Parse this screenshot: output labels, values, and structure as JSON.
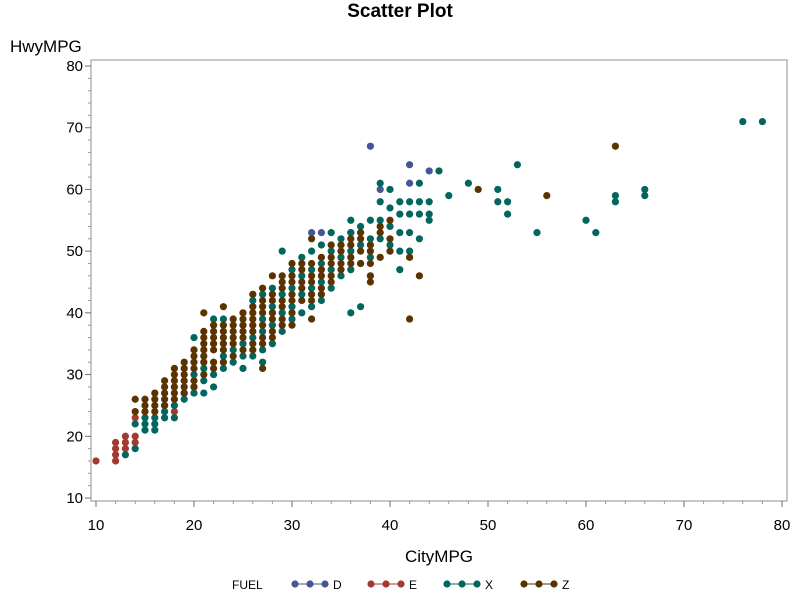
{
  "chart_data": {
    "type": "scatter",
    "title": "Scatter Plot",
    "xlabel": "CityMPG",
    "ylabel": "HwyMPG",
    "xlim": [
      10,
      80
    ],
    "ylim": [
      10,
      80
    ],
    "xticks": [
      10,
      20,
      30,
      40,
      50,
      60,
      70,
      80
    ],
    "yticks": [
      10,
      20,
      30,
      40,
      50,
      60,
      70,
      80
    ],
    "grid": false,
    "legend": {
      "title": "FUEL",
      "placement": "bottom"
    },
    "series": [
      {
        "name": "D",
        "color": "#445694",
        "points": [
          [
            38,
            67
          ],
          [
            42,
            64
          ],
          [
            44,
            63
          ],
          [
            42,
            61
          ],
          [
            39,
            60
          ],
          [
            32,
            53
          ],
          [
            33,
            53
          ],
          [
            36,
            53
          ]
        ]
      },
      {
        "name": "E",
        "color": "#A23A2E",
        "points": [
          [
            10,
            16
          ],
          [
            12,
            16
          ],
          [
            12,
            17
          ],
          [
            12,
            18
          ],
          [
            12,
            19
          ],
          [
            13,
            18
          ],
          [
            13,
            19
          ],
          [
            13,
            20
          ],
          [
            14,
            19
          ],
          [
            14,
            20
          ],
          [
            14,
            23
          ],
          [
            18,
            24
          ]
        ]
      },
      {
        "name": "X",
        "color": "#01665E",
        "points": [
          [
            13,
            17
          ],
          [
            14,
            18
          ],
          [
            14,
            22
          ],
          [
            15,
            21
          ],
          [
            15,
            22
          ],
          [
            15,
            23
          ],
          [
            16,
            21
          ],
          [
            16,
            22
          ],
          [
            16,
            23
          ],
          [
            17,
            23
          ],
          [
            17,
            24
          ],
          [
            17,
            25
          ],
          [
            18,
            23
          ],
          [
            18,
            25
          ],
          [
            19,
            26
          ],
          [
            19,
            27
          ],
          [
            20,
            27
          ],
          [
            20,
            28
          ],
          [
            20,
            30
          ],
          [
            20,
            36
          ],
          [
            21,
            27
          ],
          [
            21,
            29
          ],
          [
            21,
            31
          ],
          [
            22,
            28
          ],
          [
            22,
            30
          ],
          [
            22,
            39
          ],
          [
            23,
            31
          ],
          [
            23,
            33
          ],
          [
            23,
            39
          ],
          [
            24,
            32
          ],
          [
            24,
            34
          ],
          [
            25,
            31
          ],
          [
            25,
            33
          ],
          [
            25,
            35
          ],
          [
            26,
            33
          ],
          [
            26,
            36
          ],
          [
            26,
            42
          ],
          [
            27,
            32
          ],
          [
            27,
            34
          ],
          [
            27,
            37
          ],
          [
            27,
            39
          ],
          [
            27,
            43
          ],
          [
            28,
            35
          ],
          [
            28,
            38
          ],
          [
            28,
            41
          ],
          [
            28,
            44
          ],
          [
            29,
            37
          ],
          [
            29,
            40
          ],
          [
            29,
            43
          ],
          [
            29,
            50
          ],
          [
            30,
            39
          ],
          [
            30,
            41
          ],
          [
            30,
            44
          ],
          [
            30,
            47
          ],
          [
            31,
            40
          ],
          [
            31,
            43
          ],
          [
            31,
            46
          ],
          [
            31,
            49
          ],
          [
            32,
            41
          ],
          [
            32,
            44
          ],
          [
            32,
            47
          ],
          [
            32,
            50
          ],
          [
            33,
            42
          ],
          [
            33,
            45
          ],
          [
            33,
            48
          ],
          [
            33,
            51
          ],
          [
            34,
            44
          ],
          [
            34,
            47
          ],
          [
            34,
            50
          ],
          [
            34,
            53
          ],
          [
            35,
            46
          ],
          [
            35,
            49
          ],
          [
            35,
            52
          ],
          [
            36,
            40
          ],
          [
            36,
            47
          ],
          [
            36,
            50
          ],
          [
            36,
            53
          ],
          [
            36,
            55
          ],
          [
            37,
            41
          ],
          [
            37,
            48
          ],
          [
            37,
            51
          ],
          [
            37,
            54
          ],
          [
            38,
            49
          ],
          [
            38,
            52
          ],
          [
            38,
            55
          ],
          [
            39,
            52
          ],
          [
            39,
            55
          ],
          [
            39,
            58
          ],
          [
            39,
            61
          ],
          [
            40,
            51
          ],
          [
            40,
            54
          ],
          [
            40,
            57
          ],
          [
            40,
            60
          ],
          [
            41,
            47
          ],
          [
            41,
            50
          ],
          [
            41,
            53
          ],
          [
            41,
            56
          ],
          [
            41,
            58
          ],
          [
            42,
            50
          ],
          [
            42,
            53
          ],
          [
            42,
            56
          ],
          [
            42,
            58
          ],
          [
            43,
            52
          ],
          [
            43,
            56
          ],
          [
            43,
            58
          ],
          [
            43,
            61
          ],
          [
            44,
            55
          ],
          [
            44,
            56
          ],
          [
            44,
            58
          ],
          [
            45,
            63
          ],
          [
            46,
            59
          ],
          [
            48,
            61
          ],
          [
            51,
            58
          ],
          [
            51,
            60
          ],
          [
            52,
            56
          ],
          [
            52,
            58
          ],
          [
            53,
            64
          ],
          [
            55,
            53
          ],
          [
            60,
            55
          ],
          [
            61,
            53
          ],
          [
            63,
            58
          ],
          [
            63,
            59
          ],
          [
            66,
            59
          ],
          [
            66,
            60
          ],
          [
            76,
            71
          ],
          [
            78,
            71
          ]
        ]
      },
      {
        "name": "Z",
        "color": "#5A3300",
        "points": [
          [
            14,
            24
          ],
          [
            14,
            26
          ],
          [
            15,
            24
          ],
          [
            15,
            25
          ],
          [
            15,
            26
          ],
          [
            16,
            24
          ],
          [
            16,
            25
          ],
          [
            16,
            26
          ],
          [
            16,
            27
          ],
          [
            17,
            25
          ],
          [
            17,
            26
          ],
          [
            17,
            27
          ],
          [
            17,
            28
          ],
          [
            17,
            29
          ],
          [
            18,
            26
          ],
          [
            18,
            27
          ],
          [
            18,
            28
          ],
          [
            18,
            29
          ],
          [
            18,
            30
          ],
          [
            18,
            31
          ],
          [
            19,
            27
          ],
          [
            19,
            28
          ],
          [
            19,
            29
          ],
          [
            19,
            30
          ],
          [
            19,
            31
          ],
          [
            19,
            32
          ],
          [
            20,
            28
          ],
          [
            20,
            29
          ],
          [
            20,
            31
          ],
          [
            20,
            32
          ],
          [
            20,
            33
          ],
          [
            20,
            34
          ],
          [
            21,
            30
          ],
          [
            21,
            32
          ],
          [
            21,
            33
          ],
          [
            21,
            34
          ],
          [
            21,
            35
          ],
          [
            21,
            36
          ],
          [
            21,
            37
          ],
          [
            21,
            40
          ],
          [
            22,
            31
          ],
          [
            22,
            32
          ],
          [
            22,
            34
          ],
          [
            22,
            35
          ],
          [
            22,
            36
          ],
          [
            22,
            37
          ],
          [
            22,
            38
          ],
          [
            23,
            32
          ],
          [
            23,
            34
          ],
          [
            23,
            35
          ],
          [
            23,
            36
          ],
          [
            23,
            37
          ],
          [
            23,
            38
          ],
          [
            23,
            41
          ],
          [
            24,
            33
          ],
          [
            24,
            35
          ],
          [
            24,
            36
          ],
          [
            24,
            37
          ],
          [
            24,
            38
          ],
          [
            24,
            39
          ],
          [
            25,
            34
          ],
          [
            25,
            36
          ],
          [
            25,
            37
          ],
          [
            25,
            38
          ],
          [
            25,
            39
          ],
          [
            25,
            40
          ],
          [
            26,
            34
          ],
          [
            26,
            35
          ],
          [
            26,
            37
          ],
          [
            26,
            38
          ],
          [
            26,
            39
          ],
          [
            26,
            40
          ],
          [
            26,
            41
          ],
          [
            26,
            43
          ],
          [
            27,
            31
          ],
          [
            27,
            35
          ],
          [
            27,
            36
          ],
          [
            27,
            38
          ],
          [
            27,
            40
          ],
          [
            27,
            41
          ],
          [
            27,
            42
          ],
          [
            27,
            44
          ],
          [
            28,
            36
          ],
          [
            28,
            37
          ],
          [
            28,
            39
          ],
          [
            28,
            40
          ],
          [
            28,
            42
          ],
          [
            28,
            43
          ],
          [
            28,
            46
          ],
          [
            29,
            38
          ],
          [
            29,
            39
          ],
          [
            29,
            41
          ],
          [
            29,
            42
          ],
          [
            29,
            44
          ],
          [
            29,
            45
          ],
          [
            29,
            46
          ],
          [
            30,
            38
          ],
          [
            30,
            40
          ],
          [
            30,
            42
          ],
          [
            30,
            43
          ],
          [
            30,
            45
          ],
          [
            30,
            46
          ],
          [
            30,
            48
          ],
          [
            31,
            42
          ],
          [
            31,
            44
          ],
          [
            31,
            45
          ],
          [
            31,
            47
          ],
          [
            31,
            48
          ],
          [
            32,
            39
          ],
          [
            32,
            42
          ],
          [
            32,
            43
          ],
          [
            32,
            45
          ],
          [
            32,
            46
          ],
          [
            32,
            48
          ],
          [
            32,
            52
          ],
          [
            33,
            43
          ],
          [
            33,
            44
          ],
          [
            33,
            46
          ],
          [
            33,
            47
          ],
          [
            33,
            49
          ],
          [
            34,
            45
          ],
          [
            34,
            46
          ],
          [
            34,
            48
          ],
          [
            34,
            49
          ],
          [
            34,
            51
          ],
          [
            35,
            47
          ],
          [
            35,
            48
          ],
          [
            35,
            50
          ],
          [
            35,
            51
          ],
          [
            36,
            48
          ],
          [
            36,
            49
          ],
          [
            36,
            51
          ],
          [
            36,
            52
          ],
          [
            37,
            48
          ],
          [
            37,
            50
          ],
          [
            37,
            52
          ],
          [
            37,
            53
          ],
          [
            38,
            45
          ],
          [
            38,
            46
          ],
          [
            38,
            48
          ],
          [
            38,
            50
          ],
          [
            38,
            51
          ],
          [
            39,
            49
          ],
          [
            39,
            53
          ],
          [
            39,
            54
          ],
          [
            40,
            50
          ],
          [
            40,
            52
          ],
          [
            40,
            55
          ],
          [
            42,
            39
          ],
          [
            42,
            49
          ],
          [
            43,
            46
          ],
          [
            49,
            60
          ],
          [
            56,
            59
          ],
          [
            63,
            67
          ]
        ]
      }
    ]
  }
}
